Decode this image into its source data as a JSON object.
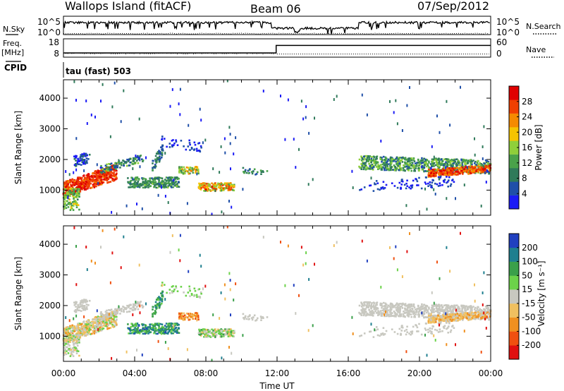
{
  "header": {
    "station": "Wallops Island (fitACF)",
    "beam": "Beam 06",
    "date": "07/Sep/2012",
    "mode_label": "tau (fast) 503"
  },
  "status_panel": {
    "nsky_label": "N.Sky",
    "nsearch_label": "N.Search",
    "freq_label": "Freq.",
    "freq_unit": "[MHz]",
    "nave_label": "Nave",
    "cpid_label": "CPID",
    "nsky_ticks": [
      "10^5",
      "10^0"
    ],
    "nsearch_ticks": [
      "10^5",
      "10^0"
    ],
    "freq_ticks": [
      "18",
      "8"
    ],
    "nave_ticks": [
      "60",
      "0"
    ],
    "freq_series": {
      "t": [
        0,
        11.95,
        11.95,
        24
      ],
      "mhz": [
        10.3,
        10.3,
        14.4,
        14.4
      ]
    }
  },
  "chart_data": [
    {
      "type": "heatmap",
      "name": "power",
      "xlabel": "",
      "ylabel": "Slant Range [km]",
      "xlim": [
        0,
        24
      ],
      "ylim": [
        180,
        4600
      ],
      "yticks": [
        1000,
        2000,
        3000,
        4000
      ],
      "colorbar_label": "Power [dB]",
      "colorbar_ticks": [
        "4",
        "8",
        "12",
        "16",
        "20",
        "24",
        "28"
      ],
      "colorbar_range": [
        0,
        32
      ],
      "colors": [
        "#1b1bf5",
        "#1f4fa8",
        "#2f7a5a",
        "#4aa24a",
        "#8fcf3a",
        "#f5c400",
        "#f58a00",
        "#f04000",
        "#e00000"
      ]
    },
    {
      "type": "heatmap",
      "name": "velocity",
      "xlabel": "Time UT",
      "ylabel": "Slant Range [km]",
      "xlim": [
        0,
        24
      ],
      "ylim": [
        180,
        4600
      ],
      "yticks": [
        1000,
        2000,
        3000,
        4000
      ],
      "xticks": [
        "00:00",
        "04:00",
        "08:00",
        "12:00",
        "16:00",
        "20:00",
        "00:00"
      ],
      "colorbar_label": "Velocity [m s⁻¹]",
      "colorbar_ticks": [
        "200",
        "100",
        "50",
        "15",
        "-15",
        "-50",
        "-100",
        "-200"
      ],
      "colors": [
        "#2040c0",
        "#1f7f8f",
        "#3aa04a",
        "#6cd24a",
        "#c8c8c0",
        "#f0c060",
        "#f09020",
        "#f05010",
        "#e01010"
      ]
    }
  ]
}
